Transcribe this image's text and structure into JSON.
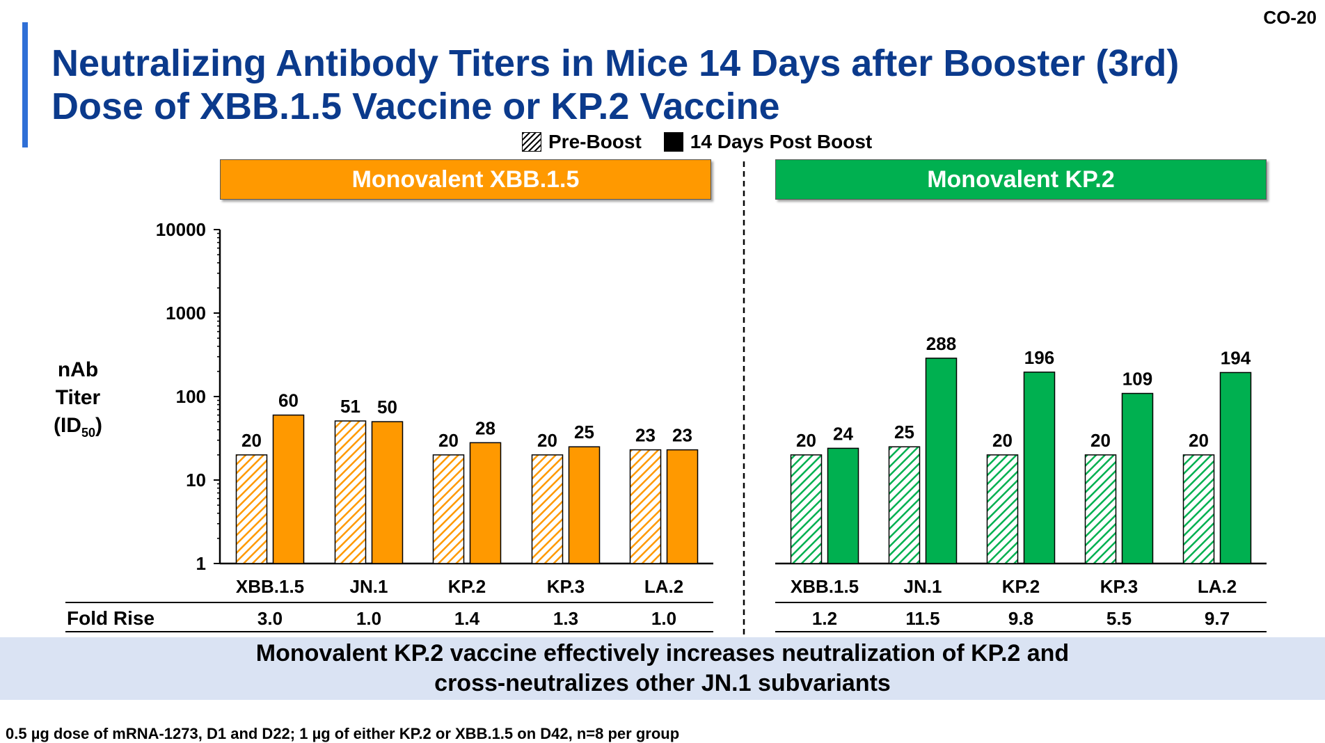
{
  "slide_id": "CO-20",
  "title": "Neutralizing Antibody Titers in Mice 14 Days after Booster (3rd) Dose of XBB.1.5 Vaccine or KP.2 Vaccine",
  "legend": {
    "pre": "Pre-Boost",
    "post": "14 Days Post Boost"
  },
  "y_axis": {
    "line1": "nAb",
    "line2": "Titer",
    "line3_main": "(ID",
    "line3_sub": "50",
    "line3_end": ")"
  },
  "fold_rise_label": "Fold Rise",
  "banner": {
    "line1": "Monovalent KP.2 vaccine effectively increases neutralization of KP.2 and",
    "line2": "cross-neutralizes other JN.1 subvariants"
  },
  "footnote": "0.5 µg dose of mRNA-1273, D1 and D22; 1 µg of either KP.2 or XBB.1.5 on D42, n=8 per group",
  "colors": {
    "orange": "#ff9900",
    "green": "#00b050",
    "title": "#0b3a8c"
  },
  "chart_data": [
    {
      "type": "bar",
      "title": "Monovalent XBB.1.5",
      "y_scale": "log",
      "ylim": [
        1,
        10000
      ],
      "ytick_labels": [
        "1",
        "10",
        "100",
        "1000",
        "10000"
      ],
      "categories": [
        "XBB.1.5",
        "JN.1",
        "KP.2",
        "KP.3",
        "LA.2"
      ],
      "series": [
        {
          "name": "Pre-Boost",
          "values": [
            20,
            51,
            20,
            20,
            23
          ]
        },
        {
          "name": "14 Days Post Boost",
          "values": [
            60,
            50,
            28,
            25,
            23
          ]
        }
      ],
      "fold_rise": [
        "3.0",
        "1.0",
        "1.4",
        "1.3",
        "1.0"
      ],
      "color": "#ff9900"
    },
    {
      "type": "bar",
      "title": "Monovalent KP.2",
      "y_scale": "log",
      "ylim": [
        1,
        10000
      ],
      "categories": [
        "XBB.1.5",
        "JN.1",
        "KP.2",
        "KP.3",
        "LA.2"
      ],
      "series": [
        {
          "name": "Pre-Boost",
          "values": [
            20,
            25,
            20,
            20,
            20
          ]
        },
        {
          "name": "14 Days Post Boost",
          "values": [
            24,
            288,
            196,
            109,
            194
          ]
        }
      ],
      "fold_rise": [
        "1.2",
        "11.5",
        "9.8",
        "5.5",
        "9.7"
      ],
      "color": "#00b050"
    }
  ]
}
